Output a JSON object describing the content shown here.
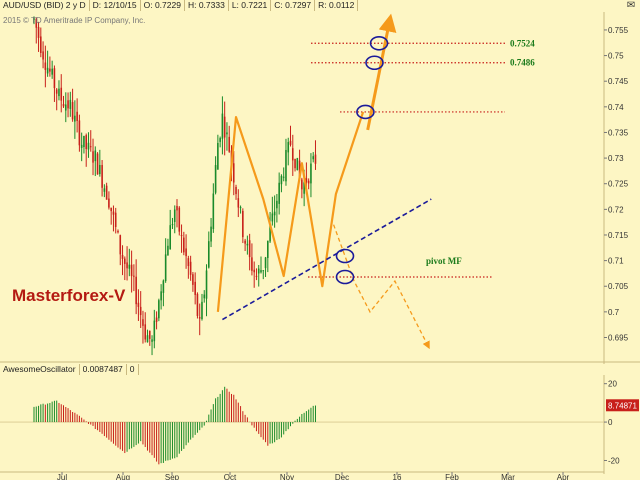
{
  "header": {
    "symbol": "AUD/USD (BID) 2 y D",
    "date": "D: 12/10/15",
    "open": "O: 0.7229",
    "high": "H: 0.7333",
    "low": "L: 0.7221",
    "close": "C: 0.7297",
    "range": "R: 0.0112"
  },
  "copyright": "2015 © TD Ameritrade IP Company, Inc.",
  "brand": "Masterforex-V",
  "oscillator_header": {
    "name": "AwesomeOscillator",
    "value": "0.0087487",
    "extra": "0"
  },
  "annotations": {
    "target_upper": "0.7524",
    "target_lower": "0.7486",
    "pivot": "pivot MF"
  },
  "colors": {
    "background": "#fdf6c4",
    "up_candle": "#1a8a2a",
    "down_candle": "#c8201a",
    "zigzag": "#f59a1b",
    "trendline": "#1b1b9a",
    "target_line": "#c8201a",
    "brand": "#b41a12",
    "ao_badge": "#c8201a"
  },
  "chart_data": [
    {
      "type": "candlestick",
      "title": "AUD/USD (BID) 2 y D",
      "x_tick_labels": [
        "Jul",
        "Aug",
        "Sep",
        "Oct",
        "Nov",
        "Dec",
        "16",
        "Feb",
        "Mar",
        "Apr"
      ],
      "y_tick_labels": [
        "0.755",
        "0.75",
        "0.745",
        "0.74",
        "0.735",
        "0.73",
        "0.725",
        "0.72",
        "0.715",
        "0.71",
        "0.705",
        "0.7",
        "0.695"
      ],
      "ylim": [
        0.691,
        0.7585
      ],
      "price_path": [
        [
          0,
          0.757
        ],
        [
          5,
          0.749
        ],
        [
          11,
          0.742
        ],
        [
          16,
          0.74
        ],
        [
          21,
          0.733
        ],
        [
          27,
          0.73
        ],
        [
          33,
          0.722
        ],
        [
          38,
          0.712
        ],
        [
          44,
          0.705
        ],
        [
          49,
          0.696
        ],
        [
          52,
          0.694
        ],
        [
          55,
          0.702
        ],
        [
          59,
          0.714
        ],
        [
          62,
          0.72
        ],
        [
          65,
          0.714
        ],
        [
          70,
          0.705
        ],
        [
          73,
          0.697
        ],
        [
          75,
          0.704
        ],
        [
          78,
          0.718
        ],
        [
          81,
          0.733
        ],
        [
          83,
          0.738
        ],
        [
          86,
          0.732
        ],
        [
          89,
          0.724
        ],
        [
          92,
          0.716
        ],
        [
          95,
          0.71
        ],
        [
          98,
          0.707
        ],
        [
          101,
          0.709
        ],
        [
          104,
          0.716
        ],
        [
          107,
          0.722
        ],
        [
          110,
          0.728
        ],
        [
          113,
          0.733
        ],
        [
          115,
          0.73
        ],
        [
          118,
          0.724
        ],
        [
          121,
          0.727
        ],
        [
          124,
          0.7297
        ]
      ],
      "zigzag": [
        [
          81,
          0.7
        ],
        [
          89,
          0.738
        ],
        [
          101,
          0.722
        ],
        [
          110,
          0.707
        ],
        [
          118,
          0.729
        ],
        [
          127,
          0.705
        ],
        [
          133,
          0.723
        ],
        [
          145,
          0.739
        ]
      ],
      "targets": [
        0.7524,
        0.7486,
        0.739
      ],
      "pivot_level": 0.7068,
      "trendline": [
        [
          83,
          0.6985
        ],
        [
          175,
          0.722
        ]
      ],
      "projection_up": [
        [
          147,
          0.7355
        ],
        [
          157,
          0.7575
        ]
      ],
      "projection_down": [
        [
          132,
          0.717
        ],
        [
          141,
          0.706
        ],
        [
          148,
          0.7
        ],
        [
          159,
          0.706
        ],
        [
          174,
          0.693
        ]
      ]
    },
    {
      "type": "bar",
      "title": "AwesomeOscillator",
      "y_tick_labels": [
        "20",
        "0",
        "-20"
      ],
      "ylim": [
        -26,
        24
      ],
      "current_value": "8.74871",
      "values_sampled": [
        [
          0,
          8
        ],
        [
          10,
          11
        ],
        [
          20,
          3
        ],
        [
          30,
          -6
        ],
        [
          40,
          -16
        ],
        [
          47,
          -10
        ],
        [
          55,
          -22
        ],
        [
          63,
          -18
        ],
        [
          70,
          -8
        ],
        [
          75,
          -2
        ],
        [
          80,
          12
        ],
        [
          84,
          18
        ],
        [
          88,
          14
        ],
        [
          93,
          4
        ],
        [
          98,
          -5
        ],
        [
          103,
          -12
        ],
        [
          108,
          -9
        ],
        [
          113,
          -2
        ],
        [
          118,
          4
        ],
        [
          123,
          8.7
        ]
      ]
    }
  ]
}
